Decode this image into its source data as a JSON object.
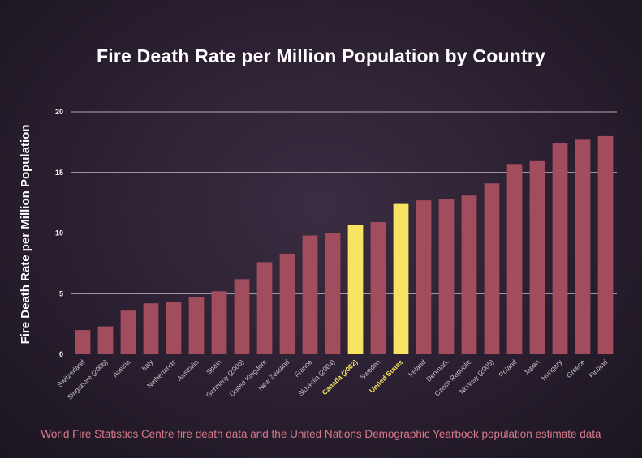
{
  "chart_data": {
    "type": "bar",
    "title": "Fire Death Rate per Million Population by Country",
    "xlabel": "",
    "ylabel": "Fire Death Rate per Million Population",
    "ylim": [
      0,
      20
    ],
    "yticks": [
      0,
      5,
      10,
      15,
      20
    ],
    "grid": true,
    "categories": [
      "Switzerland",
      "Singapore (2006)",
      "Austria",
      "Italy",
      "Netherlands",
      "Australia",
      "Spain",
      "Germany (2006)",
      "United Kingdom",
      "New Zealand",
      "France",
      "Slovenia (2004)",
      "Canada (2002)",
      "Sweden",
      "United States",
      "Ireland",
      "Denmark",
      "Czech Republic",
      "Norway (2005)",
      "Poland",
      "Japan",
      "Hungary",
      "Greece",
      "Finland"
    ],
    "values": [
      2.0,
      2.3,
      3.6,
      4.2,
      4.3,
      4.7,
      5.2,
      6.2,
      7.6,
      8.3,
      9.8,
      10.0,
      10.7,
      10.9,
      12.4,
      12.7,
      12.8,
      13.1,
      14.1,
      15.7,
      16.0,
      17.4,
      17.7,
      18.0
    ],
    "highlighted": [
      "Canada (2002)",
      "United States"
    ],
    "colors": {
      "bar": "#a24d5e",
      "highlight": "#f7e463",
      "label": "#c9c3c9",
      "highlight_label": "#f7e463",
      "grid": "#ffffff"
    }
  },
  "source": "World Fire Statistics Centre fire death data and the United Nations Demographic Yearbook population estimate data"
}
